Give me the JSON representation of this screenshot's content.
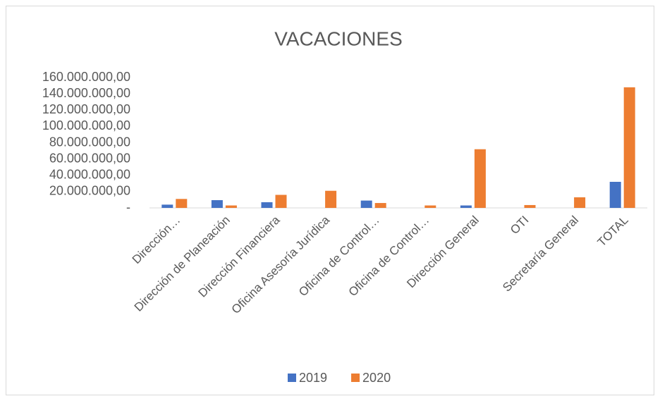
{
  "chart_data": {
    "type": "bar",
    "title": "VACACIONES",
    "categories": [
      "Dirección…",
      "Dirección de Planeación",
      "Dirección Financiera",
      "Oficina Asesoría Jurídica",
      "Oficina de Control…",
      "Oficina de Control…",
      "Dirección General",
      "OTI",
      "Secretaría General",
      "TOTAL"
    ],
    "series": [
      {
        "name": "2019",
        "color": "#4472c4",
        "values": [
          4000000,
          9500000,
          7000000,
          0,
          9000000,
          0,
          3000000,
          0,
          0,
          32000000
        ]
      },
      {
        "name": "2020",
        "color": "#ed7d31",
        "values": [
          11000000,
          3000000,
          16000000,
          21000000,
          6000000,
          3000000,
          72000000,
          3500000,
          13000000,
          148000000
        ]
      }
    ],
    "ylim": [
      0,
      160000000
    ],
    "yticks": [
      {
        "value": 0,
        "label": "-"
      },
      {
        "value": 20000000,
        "label": "20.000.000,00"
      },
      {
        "value": 40000000,
        "label": "40.000.000,00"
      },
      {
        "value": 60000000,
        "label": "60.000.000,00"
      },
      {
        "value": 80000000,
        "label": "80.000.000,00"
      },
      {
        "value": 100000000,
        "label": "100.000.000,00"
      },
      {
        "value": 120000000,
        "label": "120.000.000,00"
      },
      {
        "value": 140000000,
        "label": "140.000.000,00"
      },
      {
        "value": 160000000,
        "label": "160.000.000,00"
      }
    ],
    "grid": false,
    "legend": "bottom"
  }
}
